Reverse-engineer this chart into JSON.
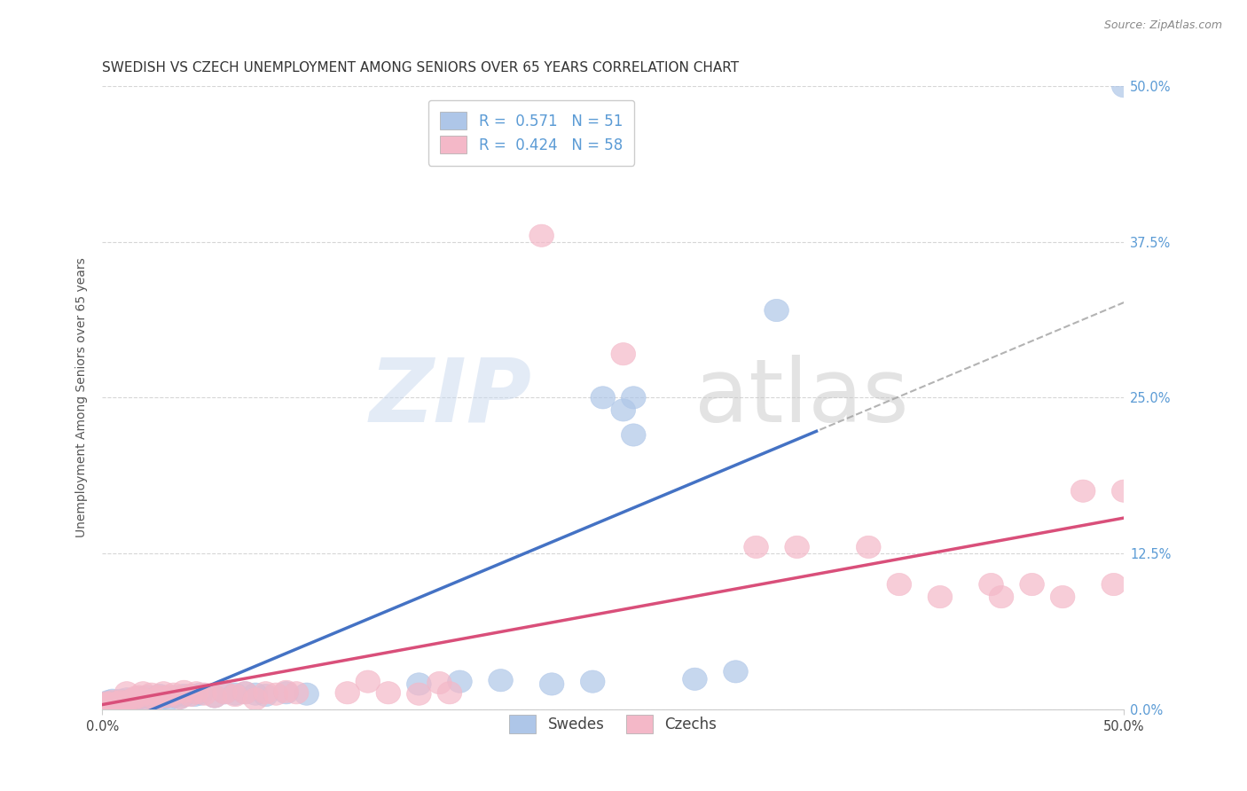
{
  "title": "SWEDISH VS CZECH UNEMPLOYMENT AMONG SENIORS OVER 65 YEARS CORRELATION CHART",
  "source": "Source: ZipAtlas.com",
  "ylabel": "Unemployment Among Seniors over 65 years",
  "blue_scatter_color": "#aec6e8",
  "pink_scatter_color": "#f4b8c8",
  "blue_line_color": "#4472c4",
  "pink_line_color": "#d94f7a",
  "swedes_R": 0.571,
  "swedes_N": 51,
  "czechs_R": 0.424,
  "czechs_N": 58,
  "swedes_points": [
    [
      0.001,
      0.004
    ],
    [
      0.002,
      0.005
    ],
    [
      0.002,
      0.003
    ],
    [
      0.003,
      0.004
    ],
    [
      0.003,
      0.006
    ],
    [
      0.004,
      0.003
    ],
    [
      0.005,
      0.005
    ],
    [
      0.005,
      0.007
    ],
    [
      0.006,
      0.004
    ],
    [
      0.007,
      0.006
    ],
    [
      0.008,
      0.005
    ],
    [
      0.009,
      0.007
    ],
    [
      0.01,
      0.006
    ],
    [
      0.011,
      0.004
    ],
    [
      0.012,
      0.008
    ],
    [
      0.013,
      0.005
    ],
    [
      0.015,
      0.006
    ],
    [
      0.016,
      0.007
    ],
    [
      0.018,
      0.009
    ],
    [
      0.02,
      0.008
    ],
    [
      0.022,
      0.01
    ],
    [
      0.025,
      0.008
    ],
    [
      0.028,
      0.011
    ],
    [
      0.03,
      0.009
    ],
    [
      0.033,
      0.008
    ],
    [
      0.035,
      0.01
    ],
    [
      0.038,
      0.009
    ],
    [
      0.04,
      0.011
    ],
    [
      0.045,
      0.011
    ],
    [
      0.048,
      0.012
    ],
    [
      0.055,
      0.01
    ],
    [
      0.06,
      0.013
    ],
    [
      0.065,
      0.012
    ],
    [
      0.07,
      0.013
    ],
    [
      0.075,
      0.012
    ],
    [
      0.08,
      0.011
    ],
    [
      0.09,
      0.013
    ],
    [
      0.1,
      0.012
    ],
    [
      0.155,
      0.02
    ],
    [
      0.175,
      0.022
    ],
    [
      0.195,
      0.023
    ],
    [
      0.22,
      0.02
    ],
    [
      0.24,
      0.022
    ],
    [
      0.26,
      0.25
    ],
    [
      0.29,
      0.024
    ],
    [
      0.31,
      0.03
    ],
    [
      0.33,
      0.32
    ],
    [
      0.5,
      0.5
    ],
    [
      0.245,
      0.25
    ],
    [
      0.26,
      0.22
    ],
    [
      0.255,
      0.24
    ]
  ],
  "czechs_points": [
    [
      0.001,
      0.003
    ],
    [
      0.002,
      0.004
    ],
    [
      0.002,
      0.005
    ],
    [
      0.003,
      0.003
    ],
    [
      0.004,
      0.004
    ],
    [
      0.005,
      0.006
    ],
    [
      0.006,
      0.004
    ],
    [
      0.007,
      0.005
    ],
    [
      0.008,
      0.003
    ],
    [
      0.009,
      0.006
    ],
    [
      0.01,
      0.005
    ],
    [
      0.011,
      0.004
    ],
    [
      0.012,
      0.013
    ],
    [
      0.014,
      0.007
    ],
    [
      0.016,
      0.009
    ],
    [
      0.018,
      0.01
    ],
    [
      0.02,
      0.013
    ],
    [
      0.022,
      0.007
    ],
    [
      0.024,
      0.012
    ],
    [
      0.026,
      0.008
    ],
    [
      0.028,
      0.01
    ],
    [
      0.03,
      0.013
    ],
    [
      0.032,
      0.01
    ],
    [
      0.035,
      0.012
    ],
    [
      0.038,
      0.009
    ],
    [
      0.04,
      0.014
    ],
    [
      0.043,
      0.011
    ],
    [
      0.046,
      0.013
    ],
    [
      0.05,
      0.012
    ],
    [
      0.055,
      0.01
    ],
    [
      0.06,
      0.013
    ],
    [
      0.065,
      0.011
    ],
    [
      0.07,
      0.013
    ],
    [
      0.075,
      0.008
    ],
    [
      0.08,
      0.013
    ],
    [
      0.085,
      0.012
    ],
    [
      0.09,
      0.014
    ],
    [
      0.095,
      0.013
    ],
    [
      0.12,
      0.013
    ],
    [
      0.13,
      0.022
    ],
    [
      0.14,
      0.013
    ],
    [
      0.155,
      0.012
    ],
    [
      0.165,
      0.021
    ],
    [
      0.17,
      0.013
    ],
    [
      0.215,
      0.38
    ],
    [
      0.255,
      0.285
    ],
    [
      0.32,
      0.13
    ],
    [
      0.34,
      0.13
    ],
    [
      0.375,
      0.13
    ],
    [
      0.39,
      0.1
    ],
    [
      0.41,
      0.09
    ],
    [
      0.435,
      0.1
    ],
    [
      0.44,
      0.09
    ],
    [
      0.455,
      0.1
    ],
    [
      0.47,
      0.09
    ],
    [
      0.48,
      0.175
    ],
    [
      0.495,
      0.1
    ],
    [
      0.5,
      0.175
    ]
  ],
  "xlim": [
    0,
    0.5
  ],
  "ylim": [
    0,
    0.5
  ],
  "x_ticks": [
    0,
    0.5
  ],
  "y_ticks": [
    0,
    0.125,
    0.25,
    0.375,
    0.5
  ],
  "x_tick_labels": [
    "0.0%",
    "50.0%"
  ],
  "y_tick_labels": [
    "0.0%",
    "12.5%",
    "25.0%",
    "37.5%",
    "50.0%"
  ],
  "title_fontsize": 11,
  "axis_label_fontsize": 10,
  "tick_fontsize": 10.5,
  "legend_fontsize": 12,
  "tick_color_blue": "#5b9bd5"
}
